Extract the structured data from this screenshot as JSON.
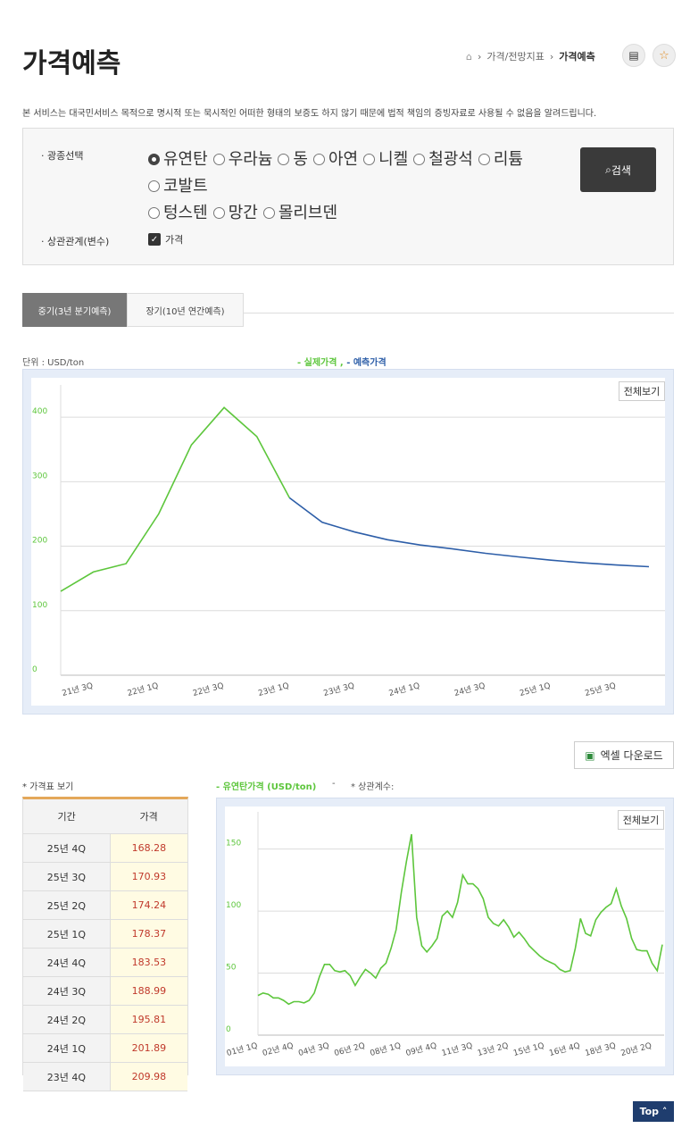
{
  "header": {
    "title": "가격예측",
    "breadcrumb": [
      "가격/전망지표",
      "가격예측"
    ]
  },
  "notice": "본 서비스는 대국민서비스 목적으로 명시적 또는 묵시적인 어떠한 형태의 보증도 하지 않기 때문에 법적 책임의 증빙자료로 사용될 수 없음을 알려드립니다.",
  "filter": {
    "mineral_label": "광종선택",
    "minerals": [
      "유연탄",
      "우라늄",
      "동",
      "아연",
      "니켈",
      "철광석",
      "리튬",
      "코발트",
      "텅스텐",
      "망간",
      "몰리브덴"
    ],
    "relation_label": "상관관계(변수)",
    "relation_option": "가격",
    "search": "검색"
  },
  "tabs": [
    "중기(3년 분기예측)",
    "장기(10년 연간예측)"
  ],
  "unit": "단위 : USD/ton",
  "full_view": "전체보기",
  "excel": "엑셀 다운로드",
  "table": {
    "caption": "* 가격표 보기",
    "header": [
      "기간",
      "가격"
    ],
    "rows": [
      [
        "25년 4Q",
        "168.28"
      ],
      [
        "25년 3Q",
        "170.93"
      ],
      [
        "25년 2Q",
        "174.24"
      ],
      [
        "25년 1Q",
        "178.37"
      ],
      [
        "24년 4Q",
        "183.53"
      ],
      [
        "24년 3Q",
        "188.99"
      ],
      [
        "24년 2Q",
        "195.81"
      ],
      [
        "24년 1Q",
        "201.89"
      ],
      [
        "23년 4Q",
        "209.98"
      ]
    ]
  },
  "top": "Top",
  "chart_data": [
    {
      "type": "line",
      "categories": [
        null,
        "21년 3Q",
        null,
        "22년 1Q",
        null,
        "22년 3Q",
        null,
        "23년 1Q",
        null,
        "23년 3Q",
        null,
        "24년 1Q",
        null,
        "24년 3Q",
        null,
        "25년 1Q",
        null,
        "25년 3Q",
        null
      ],
      "series": [
        {
          "name": "실제가격",
          "color": "#5dc63c",
          "values": [
            130,
            160,
            173,
            250,
            357,
            415,
            370,
            275,
            null,
            null,
            null,
            null,
            null,
            null,
            null,
            null,
            null,
            null,
            null
          ]
        },
        {
          "name": "예측가격",
          "color": "#2d5ea8",
          "values": [
            null,
            null,
            null,
            null,
            null,
            null,
            null,
            275,
            237,
            222,
            210,
            201.89,
            195.81,
            188.99,
            183.53,
            178.37,
            174.24,
            170.93,
            168.28
          ]
        }
      ],
      "ylim": [
        0,
        450
      ],
      "yticks": [
        0,
        100,
        200,
        300,
        400
      ],
      "grid": true
    },
    {
      "type": "line",
      "subtitle": "* 상관계수:",
      "categories": [
        "01년 1Q",
        null,
        null,
        null,
        null,
        null,
        null,
        "02년 4Q",
        null,
        null,
        null,
        null,
        null,
        null,
        "04년 3Q",
        null,
        null,
        null,
        null,
        null,
        null,
        "06년 2Q",
        null,
        null,
        null,
        null,
        null,
        null,
        "08년 1Q",
        null,
        null,
        null,
        null,
        null,
        null,
        "09년 4Q",
        null,
        null,
        null,
        null,
        null,
        null,
        "11년 3Q",
        null,
        null,
        null,
        null,
        null,
        null,
        "13년 2Q",
        null,
        null,
        null,
        null,
        null,
        null,
        "15년 1Q",
        null,
        null,
        null,
        null,
        null,
        null,
        "16년 4Q",
        null,
        null,
        null,
        null,
        null,
        null,
        "18년 3Q",
        null,
        null,
        null,
        null,
        null,
        null,
        "20년 2Q",
        null,
        null
      ],
      "series": [
        {
          "name": "유연탄가격 (USD/ton)",
          "color": "#5dc63c",
          "values": [
            32,
            34,
            33,
            30,
            30,
            28,
            25,
            27,
            27,
            26,
            28,
            34,
            47,
            57,
            57,
            52,
            51,
            52,
            48,
            40,
            47,
            53,
            50,
            46,
            54,
            58,
            70,
            85,
            115,
            140,
            162,
            95,
            72,
            67,
            72,
            78,
            96,
            100,
            95,
            107,
            129,
            122,
            122,
            118,
            110,
            95,
            90,
            88,
            93,
            87,
            79,
            83,
            78,
            72,
            68,
            64,
            61,
            59,
            57,
            53,
            51,
            52,
            70,
            94,
            82,
            80,
            93,
            99,
            103,
            106,
            118,
            104,
            94,
            78,
            69,
            68,
            68,
            58,
            52,
            73
          ]
        }
      ],
      "ylim": [
        0,
        180
      ],
      "yticks": [
        0,
        50,
        100,
        150
      ],
      "grid": true
    }
  ]
}
